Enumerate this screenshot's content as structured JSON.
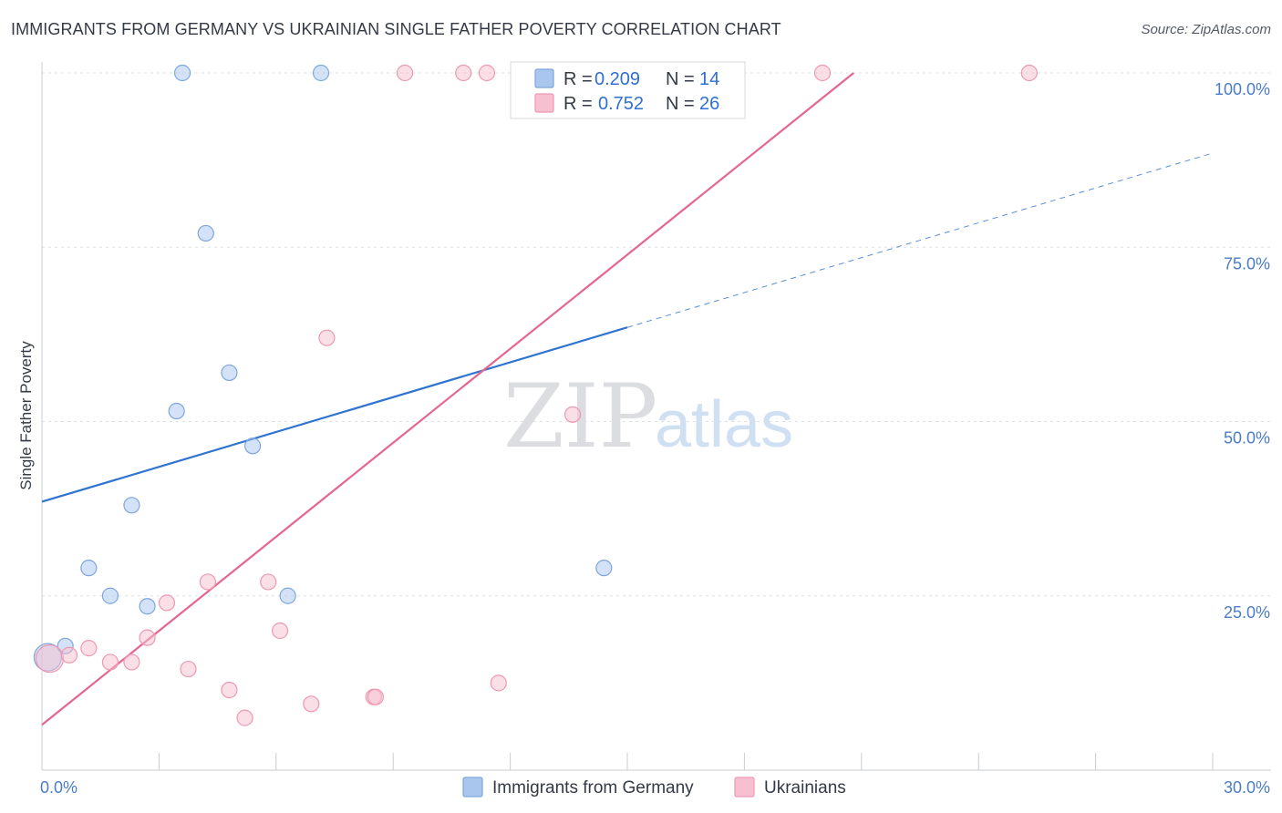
{
  "title": "IMMIGRANTS FROM GERMANY VS UKRAINIAN SINGLE FATHER POVERTY CORRELATION CHART",
  "source": "Source: ZipAtlas.com",
  "watermark": {
    "zip": "ZIP",
    "atlas": "atlas"
  },
  "chart_data": {
    "type": "scatter",
    "title": "IMMIGRANTS FROM GERMANY VS UKRAINIAN SINGLE FATHER POVERTY CORRELATION CHART",
    "xlabel": "",
    "ylabel": "Single Father Poverty",
    "xlim": [
      0,
      30
    ],
    "ylim": [
      0,
      100
    ],
    "x_tick_labels": [
      "0.0%",
      "30.0%"
    ],
    "y_ticks": [
      {
        "value": 25,
        "label": "25.0%"
      },
      {
        "value": 50,
        "label": "50.0%"
      },
      {
        "value": 75,
        "label": "75.0%"
      },
      {
        "value": 100,
        "label": "100.0%"
      }
    ],
    "grid": true,
    "legend_position": "top-center",
    "series": [
      {
        "name": "Immigrants from Germany",
        "color": "#a9c6ef",
        "stroke": "#7ea6dd",
        "line_color": "#2f74d0",
        "R": "0.209",
        "N": "14",
        "points": [
          {
            "x": 0.15,
            "y": 16.2,
            "big": true
          },
          {
            "x": 0.6,
            "y": 17.8
          },
          {
            "x": 1.2,
            "y": 29.0
          },
          {
            "x": 1.75,
            "y": 25.0
          },
          {
            "x": 2.3,
            "y": 38.0
          },
          {
            "x": 2.7,
            "y": 23.5
          },
          {
            "x": 3.45,
            "y": 51.5
          },
          {
            "x": 3.6,
            "y": 100.0
          },
          {
            "x": 4.2,
            "y": 77.0
          },
          {
            "x": 4.8,
            "y": 57.0
          },
          {
            "x": 5.4,
            "y": 46.5
          },
          {
            "x": 6.3,
            "y": 25.0
          },
          {
            "x": 7.15,
            "y": 100.0
          },
          {
            "x": 14.4,
            "y": 29.0
          }
        ],
        "trend": {
          "x0": 0,
          "y0": 38.5,
          "x1": 15.0,
          "y1": 63.5,
          "x_dash_end": 30,
          "y_dash_end": 88.5
        }
      },
      {
        "name": "Ukrainians",
        "color": "#f7c0d0",
        "stroke": "#ee98b2",
        "line_color": "#e5668e",
        "R": "0.752",
        "N": "26",
        "points": [
          {
            "x": 0.2,
            "y": 16.0,
            "big": true
          },
          {
            "x": 0.7,
            "y": 16.5
          },
          {
            "x": 1.2,
            "y": 17.5
          },
          {
            "x": 1.75,
            "y": 15.5
          },
          {
            "x": 2.3,
            "y": 15.5
          },
          {
            "x": 2.7,
            "y": 19.0
          },
          {
            "x": 3.2,
            "y": 24.0
          },
          {
            "x": 3.75,
            "y": 14.5
          },
          {
            "x": 4.25,
            "y": 27.0
          },
          {
            "x": 4.8,
            "y": 11.5
          },
          {
            "x": 5.2,
            "y": 7.5
          },
          {
            "x": 5.8,
            "y": 27.0
          },
          {
            "x": 6.1,
            "y": 20.0
          },
          {
            "x": 6.9,
            "y": 9.5
          },
          {
            "x": 7.3,
            "y": 62.0
          },
          {
            "x": 8.5,
            "y": 10.5
          },
          {
            "x": 8.55,
            "y": 10.5
          },
          {
            "x": 9.3,
            "y": 100.0
          },
          {
            "x": 10.8,
            "y": 100.0
          },
          {
            "x": 11.4,
            "y": 100.0
          },
          {
            "x": 11.7,
            "y": 12.5
          },
          {
            "x": 13.6,
            "y": 51.0
          },
          {
            "x": 13.8,
            "y": 100.0
          },
          {
            "x": 16.1,
            "y": 100.0
          },
          {
            "x": 20.0,
            "y": 100.0
          },
          {
            "x": 25.3,
            "y": 100.0
          }
        ],
        "trend": {
          "x0": 0,
          "y0": 6.5,
          "x1": 20.8,
          "y1": 100.0
        }
      }
    ]
  }
}
